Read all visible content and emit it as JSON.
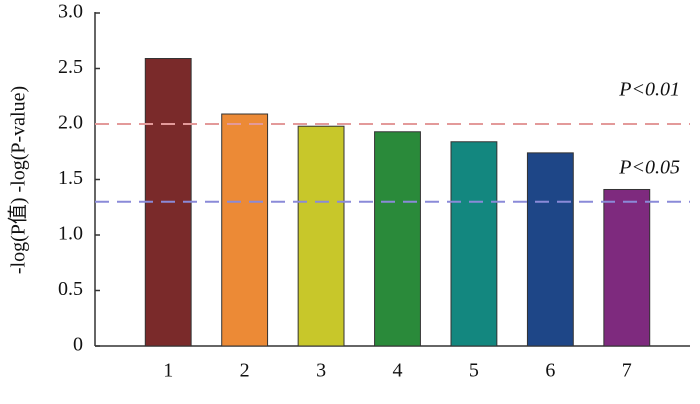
{
  "chart_data": {
    "type": "bar",
    "ylabel": "-log(P值) -log(P-value)",
    "categories": [
      "1",
      "2",
      "3",
      "4",
      "5",
      "6",
      "7"
    ],
    "values": [
      2.59,
      2.09,
      1.98,
      1.93,
      1.84,
      1.74,
      1.41
    ],
    "colors": [
      "#7a2a2a",
      "#ec8a36",
      "#c8c72a",
      "#2a8a3a",
      "#13877f",
      "#1e4687",
      "#7e2a7e"
    ],
    "ylim": [
      0,
      3
    ],
    "yticks": [
      0,
      0.5,
      {
        "value": 1,
        "label": "1.0"
      },
      1.5,
      {
        "value": 2,
        "label": "2.0"
      },
      2.5,
      {
        "value": 3,
        "label": "3.0"
      }
    ],
    "reference_lines": [
      {
        "value": 2,
        "label": "P<0.01",
        "color": "#e39a9a"
      },
      {
        "value": 1.3,
        "label": "P<0.05",
        "color": "#8a8ad8"
      }
    ]
  }
}
